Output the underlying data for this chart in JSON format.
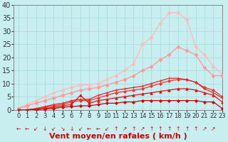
{
  "title": "",
  "xlabel": "Vent moyen/en rafales ( km/h )",
  "ylabel": "",
  "xlim": [
    -0.5,
    23
  ],
  "ylim": [
    0,
    40
  ],
  "yticks": [
    0,
    5,
    10,
    15,
    20,
    25,
    30,
    35,
    40
  ],
  "xticks": [
    0,
    1,
    2,
    3,
    4,
    5,
    6,
    7,
    8,
    9,
    10,
    11,
    12,
    13,
    14,
    15,
    16,
    17,
    18,
    19,
    20,
    21,
    22,
    23
  ],
  "background_color": "#c8eef0",
  "grid_color": "#aadddd",
  "series": [
    {
      "x": [
        0,
        1,
        2,
        3,
        4,
        5,
        6,
        7,
        8,
        9,
        10,
        11,
        12,
        13,
        14,
        15,
        16,
        17,
        18,
        19,
        20,
        21,
        22,
        23
      ],
      "y": [
        0,
        0,
        0,
        0.3,
        0.5,
        1.0,
        1.2,
        1.5,
        1.5,
        2.0,
        2.5,
        2.5,
        3.0,
        3.0,
        3.5,
        3.5,
        3.5,
        3.5,
        3.5,
        3.5,
        3.5,
        3.0,
        3.0,
        0.5
      ],
      "color": "#cc0000",
      "lw": 0.9,
      "marker": "D",
      "ms": 2.0,
      "zorder": 5
    },
    {
      "x": [
        0,
        1,
        2,
        3,
        4,
        5,
        6,
        7,
        8,
        9,
        10,
        11,
        12,
        13,
        14,
        15,
        16,
        17,
        18,
        19,
        20,
        21,
        22,
        23
      ],
      "y": [
        0,
        0,
        0.2,
        0.5,
        1.0,
        1.5,
        2.0,
        5.5,
        2.5,
        3.5,
        4.0,
        4.5,
        5.0,
        5.5,
        6.0,
        6.5,
        7.0,
        7.5,
        8.0,
        8.0,
        7.5,
        6.5,
        5.5,
        3.0
      ],
      "color": "#dd1111",
      "lw": 0.9,
      "marker": "^",
      "ms": 2.5,
      "zorder": 5
    },
    {
      "x": [
        0,
        1,
        2,
        3,
        4,
        5,
        6,
        7,
        8,
        9,
        10,
        11,
        12,
        13,
        14,
        15,
        16,
        17,
        18,
        19,
        20,
        21,
        22,
        23
      ],
      "y": [
        0,
        0,
        0.3,
        1.0,
        1.5,
        2.0,
        3.0,
        3.5,
        3.5,
        4.5,
        5.5,
        6.5,
        7.0,
        7.5,
        8.0,
        9.0,
        10.0,
        11.0,
        11.5,
        11.5,
        10.5,
        8.5,
        7.5,
        5.0
      ],
      "color": "#ee3333",
      "lw": 0.9,
      "marker": "D",
      "ms": 2.0,
      "zorder": 4
    },
    {
      "x": [
        0,
        1,
        2,
        3,
        4,
        5,
        6,
        7,
        8,
        9,
        10,
        11,
        12,
        13,
        14,
        15,
        16,
        17,
        18,
        19,
        20,
        21,
        22,
        23
      ],
      "y": [
        0,
        0,
        0.5,
        1.2,
        2.0,
        2.5,
        3.5,
        4.0,
        4.0,
        5.5,
        6.5,
        7.5,
        8.0,
        8.5,
        9.0,
        10.0,
        11.0,
        12.0,
        12.0,
        11.5,
        10.5,
        8.0,
        6.5,
        4.5
      ],
      "color": "#ee2222",
      "lw": 0.9,
      "marker": "+",
      "ms": 3.0,
      "zorder": 4
    },
    {
      "x": [
        0,
        1,
        2,
        3,
        4,
        5,
        6,
        7,
        8,
        9,
        10,
        11,
        12,
        13,
        14,
        15,
        16,
        17,
        18,
        19,
        20,
        21,
        22,
        23
      ],
      "y": [
        0.5,
        1.5,
        2.5,
        3.5,
        4.5,
        5.5,
        6.5,
        7.5,
        8.0,
        8.5,
        9.5,
        10.5,
        11.5,
        13.0,
        15.0,
        16.5,
        19.0,
        21.0,
        24.0,
        22.5,
        21.0,
        16.0,
        13.0,
        13.0
      ],
      "color": "#ff9999",
      "lw": 1.0,
      "marker": "D",
      "ms": 2.5,
      "zorder": 3
    },
    {
      "x": [
        0,
        1,
        2,
        3,
        4,
        5,
        6,
        7,
        8,
        9,
        10,
        11,
        12,
        13,
        14,
        15,
        16,
        17,
        18,
        19,
        20,
        21,
        22,
        23
      ],
      "y": [
        0.5,
        2.0,
        3.5,
        5.0,
        6.5,
        7.5,
        8.5,
        9.5,
        9.5,
        10.0,
        11.5,
        13.0,
        15.0,
        17.5,
        25.0,
        27.5,
        33.0,
        37.0,
        37.0,
        34.5,
        24.0,
        21.0,
        16.5,
        13.5
      ],
      "color": "#ffbbbb",
      "lw": 1.0,
      "marker": "D",
      "ms": 2.5,
      "zorder": 2
    }
  ],
  "wind_arrows": [
    "←",
    "←",
    "↙",
    "↓",
    "↙",
    "↘",
    "↓",
    "↙",
    "←",
    "←",
    "↙",
    "↑",
    "↗",
    "↑",
    "↗",
    "↑",
    "↑",
    "↑",
    "↑",
    "↑",
    "↑",
    "↗",
    "↗",
    ""
  ],
  "xlabel_color": "#cc0000",
  "xlabel_fontsize": 8,
  "tick_fontsize": 6,
  "ytick_fontsize": 7,
  "arrow_fontsize": 5.5
}
